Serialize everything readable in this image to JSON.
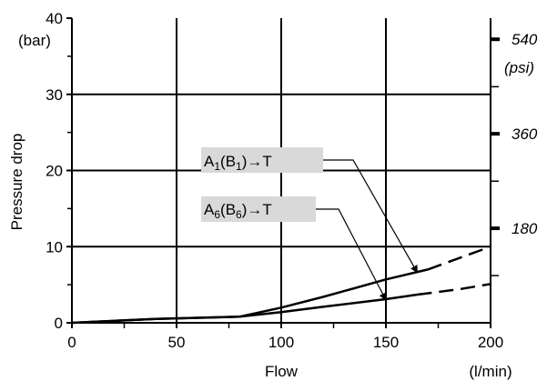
{
  "chart_data": {
    "type": "line",
    "xlabel": "Flow",
    "x_unit": "(l/min)",
    "ylabel": "Pressure drop",
    "y_unit": "(bar)",
    "secondary_y_unit": "(psi)",
    "xlim": [
      0,
      200
    ],
    "ylim": [
      0,
      40
    ],
    "x_ticks": [
      0,
      50,
      100,
      150,
      200
    ],
    "y_ticks": [
      0,
      10,
      20,
      30,
      40
    ],
    "x_minor_ticks": [
      25,
      75,
      125,
      175
    ],
    "y_minor_ticks": [
      5,
      15,
      25,
      35
    ],
    "secondary_y_ticks": [
      {
        "bar": 12.41,
        "label": "180"
      },
      {
        "bar": 24.82,
        "label": "360"
      },
      {
        "bar": 37.23,
        "label": "540"
      }
    ],
    "secondary_y_minor_bar": [
      6.2,
      18.6,
      31.0
    ],
    "grid": true,
    "series": [
      {
        "name": "A1(B1)→T",
        "label_main": "A",
        "label_sub1": "1",
        "label_mid": "(B",
        "label_sub2": "1",
        "label_end": ")→T",
        "solid": [
          [
            0,
            0
          ],
          [
            40,
            0.5
          ],
          [
            80,
            0.8
          ],
          [
            100,
            2.0
          ],
          [
            120,
            3.4
          ],
          [
            150,
            5.7
          ],
          [
            170,
            7.0
          ]
        ],
        "dashed": [
          [
            170,
            7.0
          ],
          [
            185,
            8.5
          ],
          [
            200,
            10.0
          ]
        ],
        "arrow_to": [
          165,
          6.6
        ]
      },
      {
        "name": "A6(B6)→T",
        "label_main": "A",
        "label_sub1": "6",
        "label_mid": "(B",
        "label_sub2": "6",
        "label_end": ")→T",
        "solid": [
          [
            0,
            0
          ],
          [
            40,
            0.5
          ],
          [
            80,
            0.8
          ],
          [
            100,
            1.4
          ],
          [
            120,
            2.1
          ],
          [
            150,
            3.1
          ],
          [
            165,
            3.7
          ]
        ],
        "dashed": [
          [
            165,
            3.7
          ],
          [
            185,
            4.4
          ],
          [
            200,
            5.1
          ]
        ],
        "arrow_to": [
          150,
          3.0
        ]
      }
    ]
  }
}
